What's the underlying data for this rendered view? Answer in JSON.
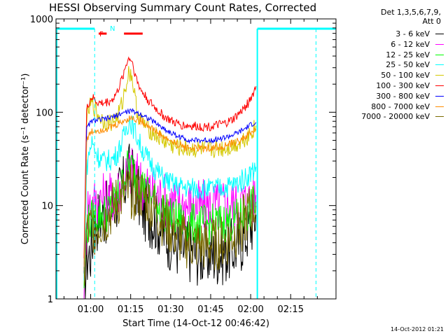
{
  "title": "HESSI Observing Summary Count Rates, Corrected",
  "legend_header": [
    "Det 1,3,5,6,7,9,",
    "Att 0"
  ],
  "footer_date": "14-Oct-2012 01:21",
  "flags": {
    "f_label": "F",
    "n_label": "N",
    "flag_color": "#ff0000"
  },
  "chart_data": {
    "type": "line",
    "title": "HESSI Observing Summary Count Rates, Corrected",
    "xlabel": "Start Time (14-Oct-12 00:46:42)",
    "ylabel": "Corrected Count Rate (s⁻¹ detector⁻¹)",
    "y_scale": "log",
    "ylim": [
      1,
      1000
    ],
    "xlim_minutes": [
      -13.0,
      92.0
    ],
    "x_ticks": [
      {
        "minutes": 0,
        "label": "01:00"
      },
      {
        "minutes": 15,
        "label": "01:15"
      },
      {
        "minutes": 30,
        "label": "01:30"
      },
      {
        "minutes": 45,
        "label": "01:45"
      },
      {
        "minutes": 60,
        "label": "02:00"
      },
      {
        "minutes": 75,
        "label": "02:15"
      }
    ],
    "y_ticks": [
      {
        "value": 1,
        "label": "1"
      },
      {
        "value": 10,
        "label": "10"
      },
      {
        "value": 100,
        "label": "100"
      },
      {
        "value": 1000,
        "label": "1000"
      }
    ],
    "series": [
      {
        "name": "3 - 6 keV",
        "color": "#000000",
        "points": [
          [
            -2.5,
            1
          ],
          [
            -1.5,
            2.8
          ],
          [
            0,
            3.2
          ],
          [
            0.5,
            4
          ],
          [
            1,
            5
          ],
          [
            2,
            6.5
          ],
          [
            3,
            7.5
          ],
          [
            5,
            8
          ],
          [
            8,
            9
          ],
          [
            10,
            12
          ],
          [
            12,
            15
          ],
          [
            13.5,
            20
          ],
          [
            14.5,
            22
          ],
          [
            15.5,
            20
          ],
          [
            16.5,
            18
          ],
          [
            17.5,
            14
          ],
          [
            18.5,
            11
          ],
          [
            20,
            9
          ],
          [
            22,
            8
          ],
          [
            25,
            6.5
          ],
          [
            28,
            5
          ],
          [
            31,
            4
          ],
          [
            34,
            3.5
          ],
          [
            38,
            3.2
          ],
          [
            42,
            3
          ],
          [
            46,
            3
          ],
          [
            50,
            3.1
          ],
          [
            53,
            3.4
          ],
          [
            56,
            4
          ],
          [
            59,
            5.5
          ],
          [
            61,
            7
          ],
          [
            62,
            8
          ]
        ]
      },
      {
        "name": "6 - 12 keV",
        "color": "#ff00ff",
        "points": [
          [
            -2.5,
            1
          ],
          [
            -1.5,
            9.5
          ],
          [
            0,
            10.5
          ],
          [
            2,
            11
          ],
          [
            4,
            11.5
          ],
          [
            6,
            12
          ],
          [
            8,
            12.5
          ],
          [
            10,
            14
          ],
          [
            12,
            18
          ],
          [
            13.5,
            23
          ],
          [
            14.5,
            24
          ],
          [
            15.5,
            23
          ],
          [
            17,
            20
          ],
          [
            19,
            18
          ],
          [
            21,
            16
          ],
          [
            24,
            13.5
          ],
          [
            27,
            12
          ],
          [
            30,
            11
          ],
          [
            33,
            10.5
          ],
          [
            37,
            10
          ],
          [
            41,
            9.8
          ],
          [
            45,
            9.8
          ],
          [
            49,
            10
          ],
          [
            53,
            10.2
          ],
          [
            56,
            10.5
          ],
          [
            59,
            11
          ],
          [
            61,
            12
          ],
          [
            62,
            13
          ]
        ]
      },
      {
        "name": "12 - 25 keV",
        "color": "#00ff00",
        "points": [
          [
            -2.5,
            1.5
          ],
          [
            -1.5,
            6
          ],
          [
            0,
            7
          ],
          [
            2,
            7.5
          ],
          [
            4,
            8
          ],
          [
            6,
            8.5
          ],
          [
            8,
            9.5
          ],
          [
            10,
            12
          ],
          [
            12,
            17
          ],
          [
            13.5,
            24
          ],
          [
            14.5,
            27
          ],
          [
            15.5,
            25
          ],
          [
            17,
            21
          ],
          [
            19,
            17
          ],
          [
            21,
            14
          ],
          [
            24,
            11
          ],
          [
            27,
            9
          ],
          [
            30,
            7.5
          ],
          [
            33,
            7
          ],
          [
            37,
            6.5
          ],
          [
            41,
            6.3
          ],
          [
            45,
            6.3
          ],
          [
            49,
            6.5
          ],
          [
            53,
            6.8
          ],
          [
            56,
            7.5
          ],
          [
            59,
            8.5
          ],
          [
            61,
            10
          ],
          [
            62,
            11
          ]
        ]
      },
      {
        "name": "25 - 50 keV",
        "color": "#00ffff",
        "points": [
          [
            -2.5,
            1.5
          ],
          [
            -1.5,
            25
          ],
          [
            -0.5,
            38
          ],
          [
            0.5,
            48
          ],
          [
            1.5,
            40
          ],
          [
            3,
            33
          ],
          [
            5,
            30
          ],
          [
            8,
            31
          ],
          [
            10,
            36
          ],
          [
            12,
            50
          ],
          [
            13.5,
            70
          ],
          [
            14.5,
            82
          ],
          [
            15.5,
            74
          ],
          [
            17,
            58
          ],
          [
            19,
            42
          ],
          [
            21,
            33
          ],
          [
            24,
            25
          ],
          [
            27,
            20
          ],
          [
            30,
            17.5
          ],
          [
            33,
            16
          ],
          [
            37,
            15.5
          ],
          [
            41,
            15
          ],
          [
            45,
            15
          ],
          [
            49,
            15.5
          ],
          [
            53,
            16.5
          ],
          [
            56,
            18
          ],
          [
            59,
            21
          ],
          [
            61,
            24
          ],
          [
            62,
            26
          ]
        ]
      },
      {
        "name": "50 - 100 keV",
        "color": "#d4c800",
        "points": [
          [
            -2.5,
            2
          ],
          [
            -1.5,
            80
          ],
          [
            -0.5,
            110
          ],
          [
            0.5,
            125
          ],
          [
            1.5,
            110
          ],
          [
            3,
            92
          ],
          [
            5,
            80
          ],
          [
            8,
            78
          ],
          [
            10,
            88
          ],
          [
            12,
            130
          ],
          [
            13.5,
            220
          ],
          [
            14.5,
            275
          ],
          [
            15.5,
            240
          ],
          [
            16.5,
            150
          ],
          [
            17.5,
            98
          ],
          [
            19,
            80
          ],
          [
            22,
            65
          ],
          [
            25,
            55
          ],
          [
            28,
            48
          ],
          [
            31,
            43
          ],
          [
            34,
            41
          ],
          [
            38,
            40
          ],
          [
            42,
            40
          ],
          [
            46,
            40
          ],
          [
            50,
            41
          ],
          [
            53,
            43
          ],
          [
            56,
            48
          ],
          [
            59,
            56
          ],
          [
            61,
            65
          ],
          [
            62,
            72
          ]
        ]
      },
      {
        "name": "100 - 300 keV",
        "color": "#ff0000",
        "points": [
          [
            -2.5,
            3
          ],
          [
            -1.5,
            105
          ],
          [
            -0.5,
            130
          ],
          [
            0.5,
            145
          ],
          [
            1.5,
            135
          ],
          [
            3,
            125
          ],
          [
            5,
            125
          ],
          [
            8,
            135
          ],
          [
            10,
            165
          ],
          [
            12,
            240
          ],
          [
            13.5,
            340
          ],
          [
            14.5,
            385
          ],
          [
            15.5,
            355
          ],
          [
            16.5,
            270
          ],
          [
            17.5,
            210
          ],
          [
            19,
            170
          ],
          [
            22,
            130
          ],
          [
            25,
            105
          ],
          [
            28,
            88
          ],
          [
            31,
            78
          ],
          [
            34,
            73
          ],
          [
            38,
            71
          ],
          [
            42,
            70
          ],
          [
            46,
            71
          ],
          [
            50,
            75
          ],
          [
            53,
            82
          ],
          [
            56,
            98
          ],
          [
            59,
            125
          ],
          [
            61,
            160
          ],
          [
            62,
            190
          ]
        ]
      },
      {
        "name": "300 - 800 keV",
        "color": "#0000ff",
        "points": [
          [
            -2.5,
            2
          ],
          [
            -1.5,
            65
          ],
          [
            -0.5,
            75
          ],
          [
            0.5,
            80
          ],
          [
            2,
            82
          ],
          [
            4,
            83
          ],
          [
            6,
            85
          ],
          [
            8,
            88
          ],
          [
            10,
            93
          ],
          [
            12,
            98
          ],
          [
            14,
            102
          ],
          [
            15.5,
            103
          ],
          [
            17,
            100
          ],
          [
            19,
            95
          ],
          [
            21,
            88
          ],
          [
            24,
            78
          ],
          [
            27,
            68
          ],
          [
            30,
            60
          ],
          [
            33,
            55
          ],
          [
            36,
            51
          ],
          [
            39,
            50
          ],
          [
            43,
            50
          ],
          [
            47,
            51
          ],
          [
            51,
            54
          ],
          [
            54,
            58
          ],
          [
            57,
            64
          ],
          [
            59,
            70
          ],
          [
            61,
            76
          ],
          [
            62,
            78
          ]
        ]
      },
      {
        "name": "800 - 7000 keV",
        "color": "#ff8c00",
        "points": [
          [
            -2.5,
            2
          ],
          [
            -1.5,
            50
          ],
          [
            -0.5,
            57
          ],
          [
            0.5,
            62
          ],
          [
            2,
            64
          ],
          [
            4,
            65
          ],
          [
            6,
            67
          ],
          [
            8,
            70
          ],
          [
            10,
            74
          ],
          [
            12,
            80
          ],
          [
            14,
            85
          ],
          [
            15.5,
            87
          ],
          [
            17,
            84
          ],
          [
            19,
            80
          ],
          [
            21,
            74
          ],
          [
            24,
            64
          ],
          [
            27,
            55
          ],
          [
            30,
            49
          ],
          [
            33,
            45
          ],
          [
            36,
            42
          ],
          [
            39,
            41
          ],
          [
            43,
            41
          ],
          [
            47,
            42
          ],
          [
            51,
            44
          ],
          [
            54,
            47
          ],
          [
            57,
            52
          ],
          [
            59,
            57
          ],
          [
            61,
            63
          ],
          [
            62,
            66
          ]
        ]
      },
      {
        "name": "7000 - 20000 keV",
        "color": "#7a6a00",
        "points": [
          [
            -2.5,
            1.5
          ],
          [
            -1.5,
            5
          ],
          [
            0,
            5.5
          ],
          [
            2,
            6
          ],
          [
            4,
            6.5
          ],
          [
            6,
            7.5
          ],
          [
            8,
            9
          ],
          [
            10,
            11
          ],
          [
            12,
            12.5
          ],
          [
            14,
            13.5
          ],
          [
            15.5,
            14
          ],
          [
            17,
            13.8
          ],
          [
            19,
            13
          ],
          [
            21,
            11.5
          ],
          [
            24,
            9
          ],
          [
            27,
            7
          ],
          [
            30,
            5.5
          ],
          [
            33,
            4.5
          ],
          [
            36,
            4
          ],
          [
            39,
            3.8
          ],
          [
            43,
            3.7
          ],
          [
            47,
            3.8
          ],
          [
            51,
            4.2
          ],
          [
            54,
            5
          ],
          [
            57,
            6.5
          ],
          [
            59,
            8
          ],
          [
            61,
            9.5
          ],
          [
            62,
            10
          ]
        ]
      }
    ],
    "markers": {
      "color": "#00ffff",
      "solid_vertical_minutes": [
        62.5
      ],
      "dashed_vertical_minutes": [
        1.5,
        84.5
      ],
      "top_bars_minutes": [
        [
          -13,
          1.5
        ],
        [
          62.5,
          92
        ]
      ],
      "flag_bars_minutes": [
        [
          3,
          6
        ],
        [
          12.5,
          19.5
        ]
      ]
    }
  }
}
